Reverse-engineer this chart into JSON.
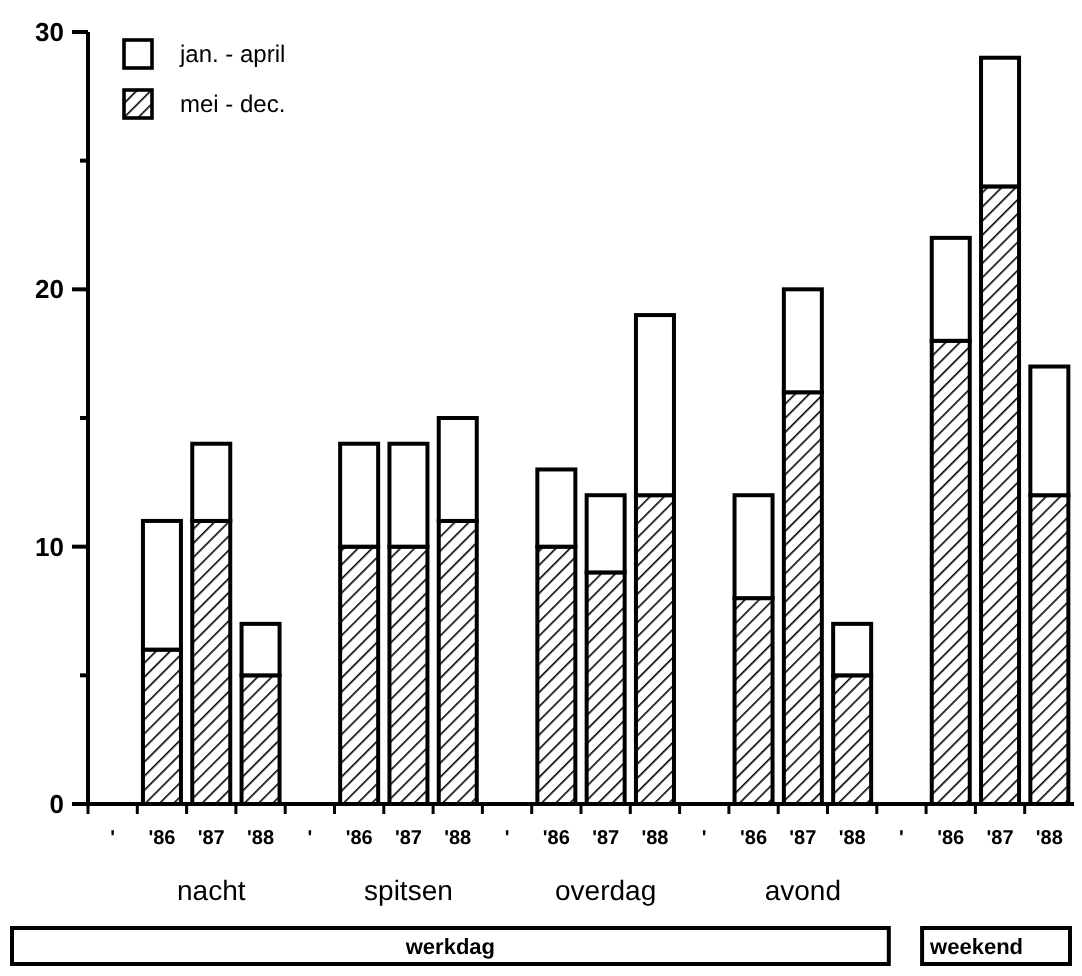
{
  "chart_data": {
    "type": "bar",
    "stacked": true,
    "categories": [
      "'",
      "'86",
      "'87",
      "'88",
      "'",
      "'86",
      "'87",
      "'88",
      "'",
      "'86",
      "'87",
      "'88",
      "'",
      "'86",
      "'87",
      "'88",
      "'",
      "'86",
      "'87",
      "'88"
    ],
    "series": [
      {
        "name": "mei - dec.",
        "color": "#000000",
        "values": [
          null,
          6,
          11,
          5,
          null,
          10,
          10,
          11,
          null,
          10,
          9,
          12,
          null,
          8,
          16,
          5,
          null,
          18,
          24,
          12
        ]
      },
      {
        "name": "jan. - april",
        "color": "#ffffff",
        "values": [
          null,
          5,
          3,
          2,
          null,
          4,
          4,
          4,
          null,
          3,
          3,
          7,
          null,
          4,
          4,
          2,
          null,
          4,
          5,
          5
        ]
      }
    ],
    "ylim": [
      0,
      30
    ],
    "yticks": [
      0,
      {
        "value": 5,
        "label": null
      },
      10,
      {
        "value": 15,
        "label": null
      },
      20,
      {
        "value": 25,
        "label": null
      },
      30
    ],
    "legend": "top left",
    "grid": false,
    "annotations": [
      "nacht",
      "spitsen",
      "overdag",
      "avond",
      "werkdag",
      "weekend"
    ]
  }
}
